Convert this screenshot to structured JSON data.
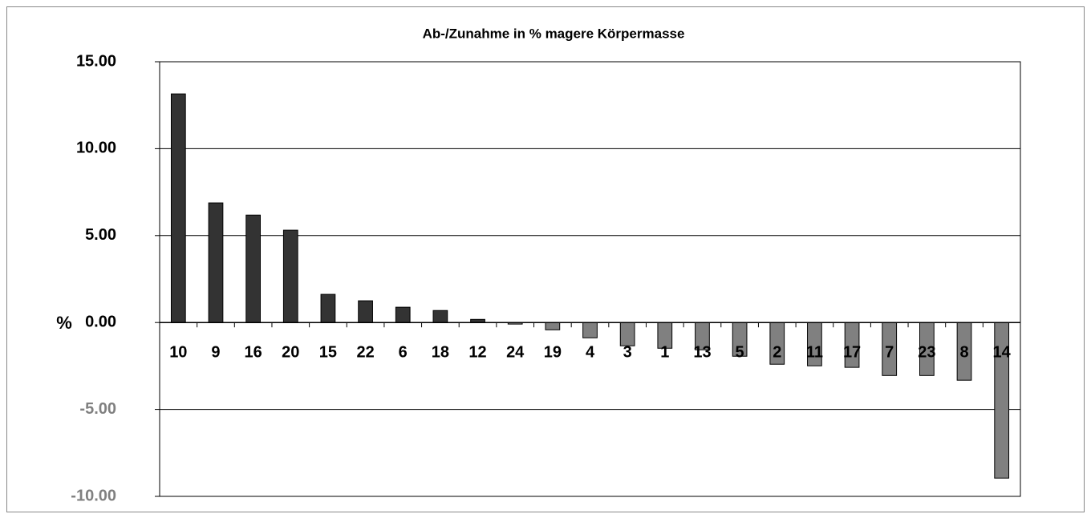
{
  "chart_data": {
    "type": "bar",
    "title": "Ab-/Zunahme in % magere Körpermasse",
    "y_label": "%",
    "categories": [
      "10",
      "9",
      "16",
      "20",
      "15",
      "22",
      "6",
      "18",
      "12",
      "24",
      "19",
      "4",
      "3",
      "1",
      "13",
      "5",
      "2",
      "11",
      "17",
      "7",
      "23",
      "8",
      "14"
    ],
    "values": [
      13.15,
      6.88,
      6.18,
      5.31,
      1.62,
      1.25,
      0.88,
      0.69,
      0.18,
      -0.09,
      -0.42,
      -0.88,
      -1.34,
      -1.48,
      -1.57,
      -1.94,
      -2.4,
      -2.49,
      -2.58,
      -3.05,
      -3.05,
      -3.32,
      -8.95
    ],
    "color_positive": "#333333",
    "color_negative": "#808080",
    "ylim": [
      -10,
      15
    ],
    "yticks": [
      {
        "value": -10,
        "label": "-10.00"
      },
      {
        "value": -5,
        "label": "-5.00"
      },
      {
        "value": 0,
        "label": "0.00"
      },
      {
        "value": 5,
        "label": "5.00"
      },
      {
        "value": 10,
        "label": "10.00"
      },
      {
        "value": 15,
        "label": "15.00"
      }
    ],
    "grid": true
  }
}
